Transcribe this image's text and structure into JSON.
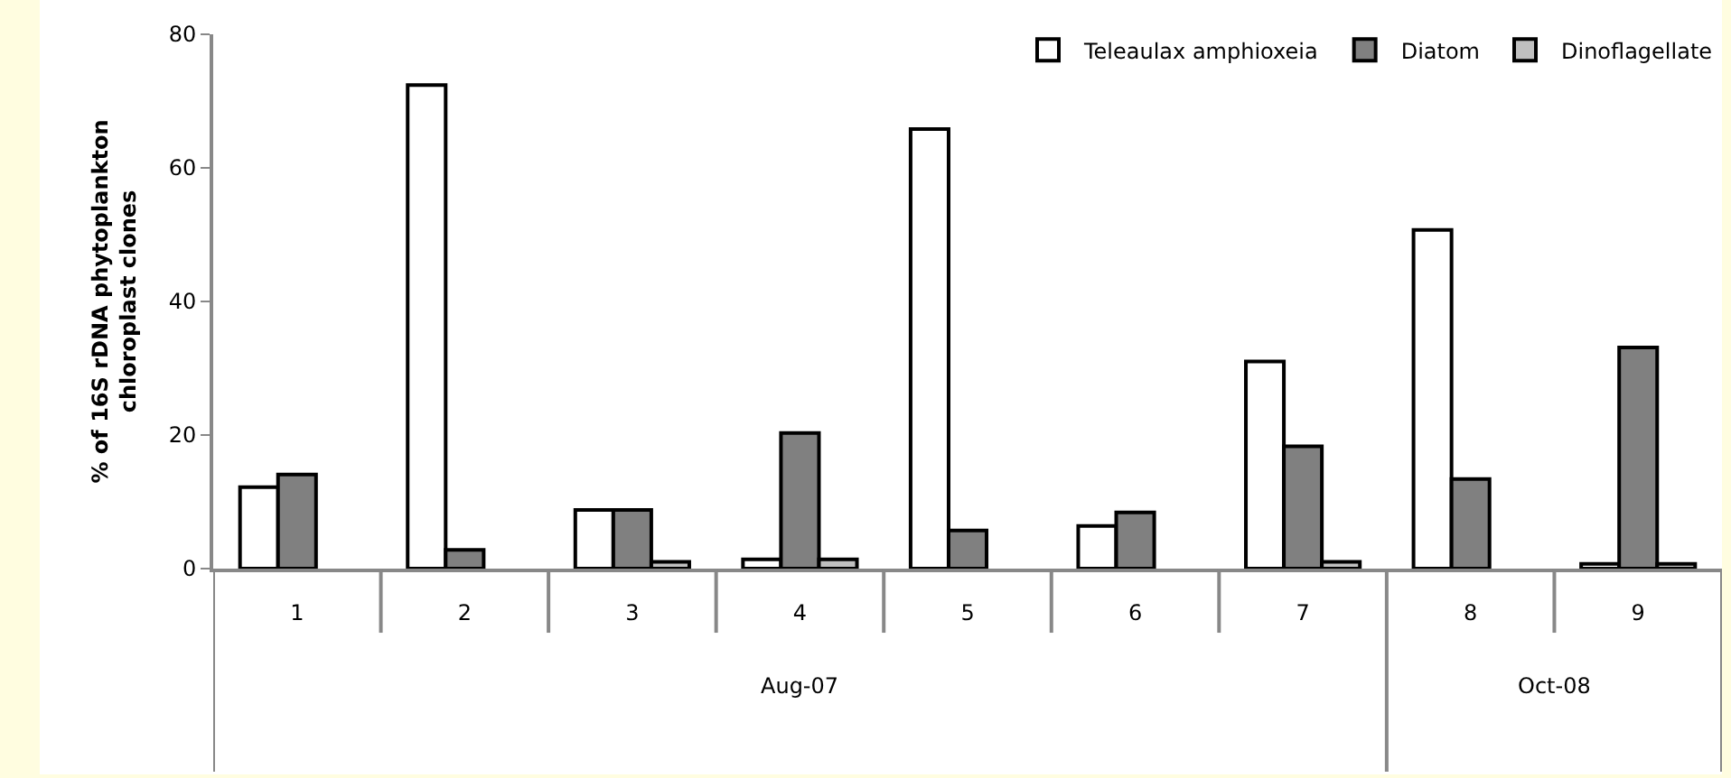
{
  "chart_data": {
    "type": "bar",
    "ylabel": "% of 16S rDNA phytoplankton\nchloroplast clones",
    "categories": [
      "1",
      "2",
      "3",
      "4",
      "5",
      "6",
      "7",
      "8",
      "9"
    ],
    "series": [
      {
        "name": "Teleaulax amphioxeia",
        "color": "#ffffff",
        "values": [
          12.2,
          72.4,
          8.8,
          1.4,
          65.8,
          6.4,
          31.0,
          50.7,
          0.7
        ]
      },
      {
        "name": "Diatom",
        "color": "#808080",
        "values": [
          14.1,
          2.8,
          8.8,
          20.3,
          5.7,
          8.4,
          18.3,
          13.4,
          33.1
        ]
      },
      {
        "name": "Dinoflagellate",
        "color": "#c0c0c0",
        "values": [
          null,
          null,
          1.0,
          1.4,
          null,
          null,
          1.0,
          null,
          0.7
        ]
      }
    ],
    "ylim": [
      0,
      80
    ],
    "yticks": [
      0,
      20,
      40,
      60,
      80
    ],
    "grid": false,
    "legend": "top right",
    "annotations": [
      "Aug-07",
      "Oct-08"
    ]
  }
}
